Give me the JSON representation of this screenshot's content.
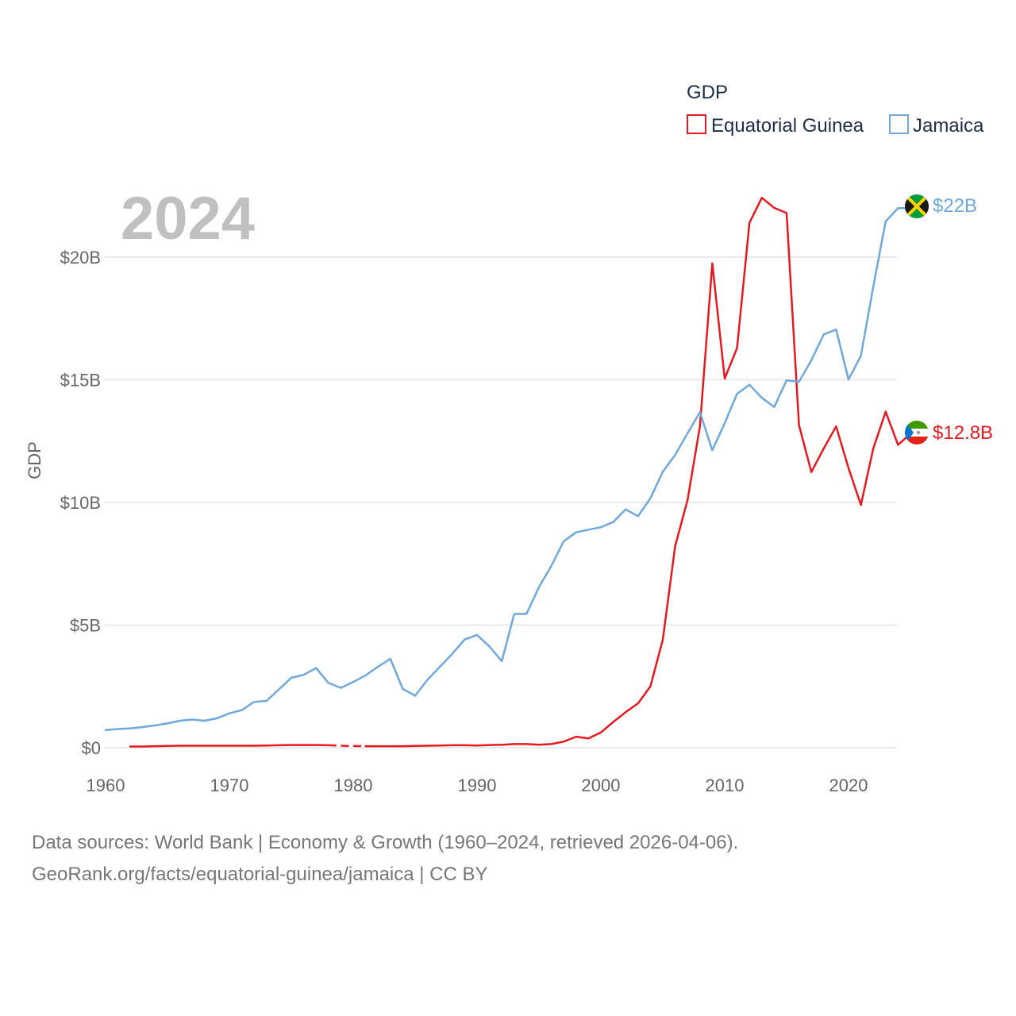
{
  "chart_data": {
    "type": "line",
    "year_label": "2024",
    "ylabel": "GDP",
    "xlabel": "",
    "xlim": [
      1960,
      2024
    ],
    "ylim": [
      0,
      23
    ],
    "y_ticks": [
      {
        "value": 0,
        "label": "$0"
      },
      {
        "value": 5,
        "label": "$5B"
      },
      {
        "value": 10,
        "label": "$10B"
      },
      {
        "value": 15,
        "label": "$15B"
      },
      {
        "value": 20,
        "label": "$20B"
      }
    ],
    "x_ticks": [
      {
        "value": 1960,
        "label": "1960"
      },
      {
        "value": 1970,
        "label": "1970"
      },
      {
        "value": 1980,
        "label": "1980"
      },
      {
        "value": 1990,
        "label": "1990"
      },
      {
        "value": 2000,
        "label": "2000"
      },
      {
        "value": 2010,
        "label": "2010"
      },
      {
        "value": 2020,
        "label": "2020"
      }
    ],
    "grid": true,
    "legend": {
      "title": "GDP",
      "placement": "top-right"
    },
    "series": [
      {
        "name": "Equatorial Guinea",
        "color": "#e8191e",
        "end_label": "$12.8B",
        "flag": "equatorial-guinea-flag-icon",
        "gap_years": [
          1978,
          1979,
          1980
        ],
        "points": [
          [
            1962,
            0.05
          ],
          [
            1963,
            0.05
          ],
          [
            1964,
            0.06
          ],
          [
            1965,
            0.07
          ],
          [
            1966,
            0.08
          ],
          [
            1967,
            0.08
          ],
          [
            1968,
            0.08
          ],
          [
            1969,
            0.08
          ],
          [
            1970,
            0.08
          ],
          [
            1971,
            0.08
          ],
          [
            1972,
            0.08
          ],
          [
            1973,
            0.09
          ],
          [
            1974,
            0.1
          ],
          [
            1975,
            0.11
          ],
          [
            1976,
            0.11
          ],
          [
            1977,
            0.11
          ],
          [
            1978,
            0.1
          ],
          [
            1979,
            0.08
          ],
          [
            1980,
            0.07
          ],
          [
            1981,
            0.06
          ],
          [
            1982,
            0.06
          ],
          [
            1983,
            0.06
          ],
          [
            1984,
            0.06
          ],
          [
            1985,
            0.07
          ],
          [
            1986,
            0.08
          ],
          [
            1987,
            0.09
          ],
          [
            1988,
            0.1
          ],
          [
            1989,
            0.1
          ],
          [
            1990,
            0.09
          ],
          [
            1991,
            0.11
          ],
          [
            1992,
            0.12
          ],
          [
            1993,
            0.15
          ],
          [
            1994,
            0.15
          ],
          [
            1995,
            0.12
          ],
          [
            1996,
            0.15
          ],
          [
            1997,
            0.25
          ],
          [
            1998,
            0.45
          ],
          [
            1999,
            0.38
          ],
          [
            2000,
            0.62
          ],
          [
            2001,
            1.05
          ],
          [
            2002,
            1.45
          ],
          [
            2003,
            1.81
          ],
          [
            2004,
            2.5
          ],
          [
            2005,
            4.4
          ],
          [
            2006,
            8.22
          ],
          [
            2007,
            10.1
          ],
          [
            2008,
            13.1
          ],
          [
            2009,
            19.75
          ],
          [
            2010,
            15.05
          ],
          [
            2011,
            16.3
          ],
          [
            2012,
            21.4
          ],
          [
            2013,
            22.42
          ],
          [
            2014,
            22.01
          ],
          [
            2015,
            21.8
          ],
          [
            2016,
            13.15
          ],
          [
            2017,
            11.24
          ],
          [
            2018,
            12.2
          ],
          [
            2019,
            13.1
          ],
          [
            2020,
            11.4
          ],
          [
            2021,
            9.9
          ],
          [
            2022,
            12.2
          ],
          [
            2023,
            13.7
          ],
          [
            2024,
            12.35
          ],
          [
            2025,
            12.8
          ]
        ]
      },
      {
        "name": "Jamaica",
        "color": "#6fa8dc",
        "end_label": "$22B",
        "flag": "jamaica-flag-icon",
        "gap_years": [],
        "points": [
          [
            1960,
            0.72
          ],
          [
            1961,
            0.76
          ],
          [
            1962,
            0.79
          ],
          [
            1963,
            0.84
          ],
          [
            1964,
            0.91
          ],
          [
            1965,
            0.99
          ],
          [
            1966,
            1.1
          ],
          [
            1967,
            1.15
          ],
          [
            1968,
            1.1
          ],
          [
            1969,
            1.2
          ],
          [
            1970,
            1.4
          ],
          [
            1971,
            1.53
          ],
          [
            1972,
            1.87
          ],
          [
            1973,
            1.91
          ],
          [
            1974,
            2.38
          ],
          [
            1975,
            2.85
          ],
          [
            1976,
            2.97
          ],
          [
            1977,
            3.25
          ],
          [
            1978,
            2.64
          ],
          [
            1979,
            2.44
          ],
          [
            1980,
            2.68
          ],
          [
            1981,
            2.95
          ],
          [
            1982,
            3.3
          ],
          [
            1983,
            3.62
          ],
          [
            1984,
            2.4
          ],
          [
            1985,
            2.12
          ],
          [
            1986,
            2.77
          ],
          [
            1987,
            3.3
          ],
          [
            1988,
            3.83
          ],
          [
            1989,
            4.41
          ],
          [
            1990,
            4.6
          ],
          [
            1991,
            4.13
          ],
          [
            1992,
            3.53
          ],
          [
            1993,
            5.45
          ],
          [
            1994,
            5.46
          ],
          [
            1995,
            6.55
          ],
          [
            1996,
            7.41
          ],
          [
            1997,
            8.42
          ],
          [
            1998,
            8.78
          ],
          [
            1999,
            8.89
          ],
          [
            2000,
            8.99
          ],
          [
            2001,
            9.2
          ],
          [
            2002,
            9.72
          ],
          [
            2003,
            9.44
          ],
          [
            2004,
            10.17
          ],
          [
            2005,
            11.25
          ],
          [
            2006,
            11.94
          ],
          [
            2007,
            12.82
          ],
          [
            2008,
            13.68
          ],
          [
            2009,
            12.13
          ],
          [
            2010,
            13.23
          ],
          [
            2011,
            14.43
          ],
          [
            2012,
            14.8
          ],
          [
            2013,
            14.27
          ],
          [
            2014,
            13.89
          ],
          [
            2015,
            14.98
          ],
          [
            2016,
            14.92
          ],
          [
            2017,
            15.8
          ],
          [
            2018,
            16.85
          ],
          [
            2019,
            17.05
          ],
          [
            2020,
            15.01
          ],
          [
            2021,
            15.98
          ],
          [
            2022,
            18.8
          ],
          [
            2023,
            21.46
          ],
          [
            2024,
            22.0
          ],
          [
            2025,
            22.0
          ]
        ]
      }
    ]
  },
  "footer": {
    "line1": "Data sources: World Bank | Economy & Growth (1960–2024, retrieved 2026-04-06).",
    "line2": "GeoRank.org/facts/equatorial-guinea/jamaica | CC BY"
  }
}
